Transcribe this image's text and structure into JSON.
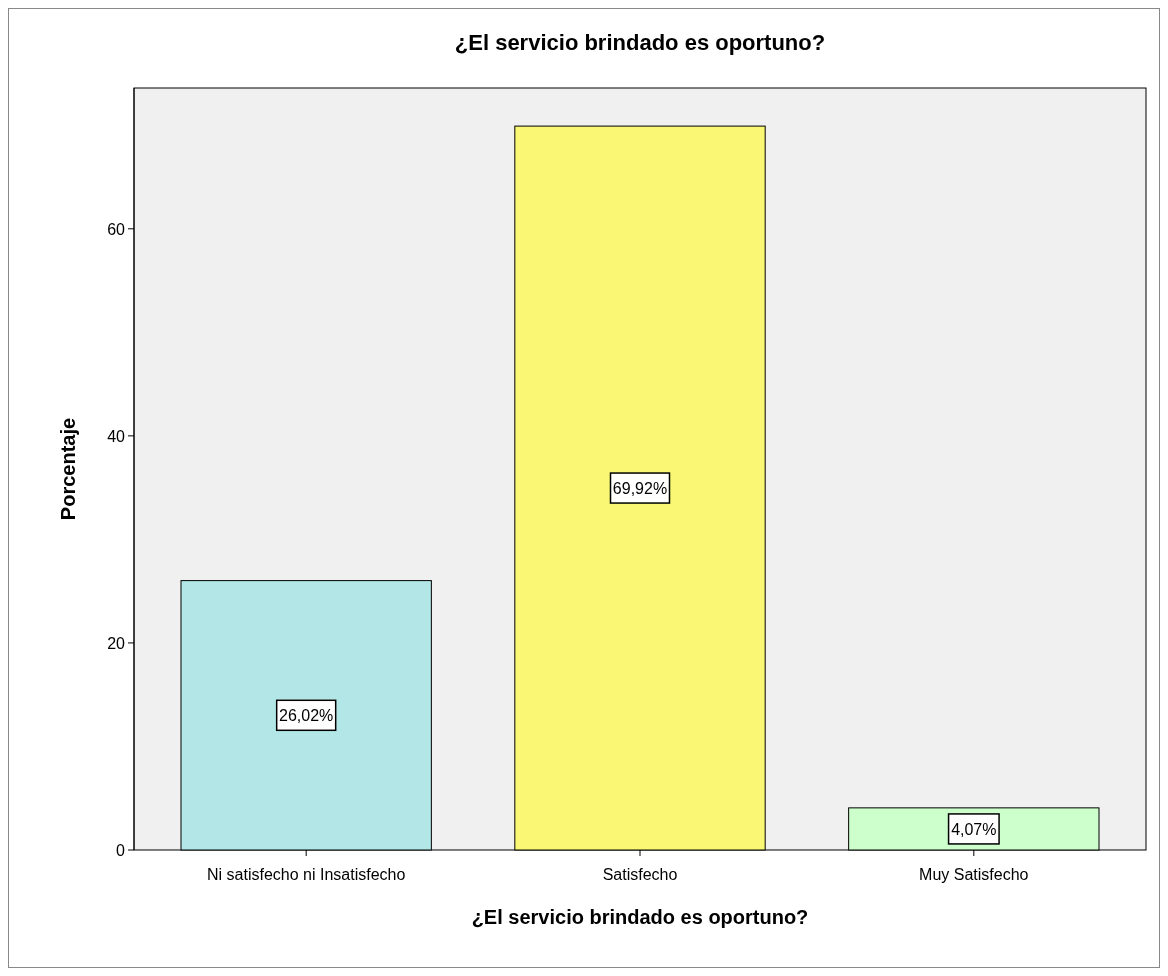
{
  "chart_data": {
    "type": "bar",
    "title": "¿El servicio brindado es oportuno?",
    "xlabel": "¿El servicio brindado es oportuno?",
    "ylabel": "Porcentaje",
    "categories": [
      "Ni satisfecho ni Insatisfecho",
      "Satisfecho",
      "Muy Satisfecho"
    ],
    "values": [
      26.02,
      69.92,
      4.07
    ],
    "colors": [
      "#b3e6e6",
      "#f9f774",
      "#ccffcc"
    ],
    "value_labels": [
      "26,02%",
      "69,92%",
      "4,07%"
    ],
    "ylim": [
      0,
      73.6
    ],
    "yticks": [
      0,
      20,
      40,
      60
    ],
    "grid": false
  }
}
